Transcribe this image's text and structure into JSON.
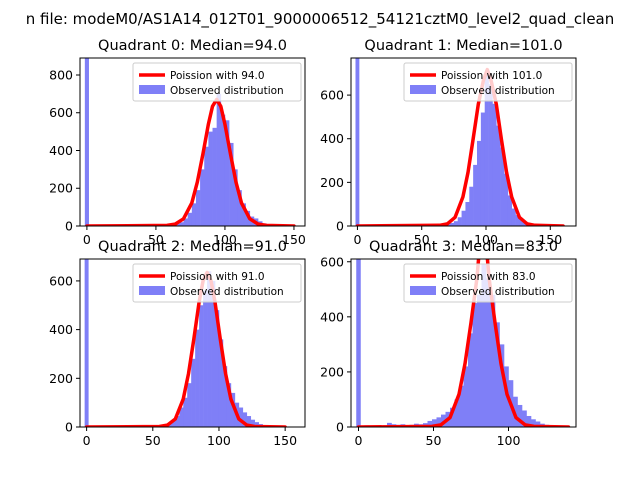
{
  "figure": {
    "suptitle": "n file: modeM0/AS1A14_012T01_9000006512_54121cztM0_level2_quad_clean"
  },
  "colors": {
    "poisson": "#ff0000",
    "observed": "#7f7ff7",
    "axes": "#000000",
    "background": "#ffffff"
  },
  "chart_data": [
    {
      "type": "bar",
      "title": "Quadrant 0: Median=94.0",
      "median": 94.0,
      "xlim": [
        -5,
        158
      ],
      "ylim": [
        0,
        890
      ],
      "xticks": [
        0,
        50,
        100,
        150
      ],
      "yticks": [
        0,
        200,
        400,
        600,
        800
      ],
      "spike": {
        "x": 0,
        "value": 890
      },
      "histogram": {
        "bin_width": 3,
        "x": [
          55,
          58,
          61,
          64,
          67,
          70,
          73,
          76,
          79,
          82,
          85,
          88,
          91,
          94,
          97,
          100,
          103,
          106,
          109,
          112,
          115,
          118,
          121,
          124,
          127,
          130,
          133
        ],
        "values": [
          2,
          4,
          6,
          12,
          20,
          40,
          70,
          120,
          190,
          300,
          420,
          500,
          520,
          700,
          590,
          560,
          440,
          300,
          190,
          120,
          80,
          50,
          40,
          25,
          14,
          8,
          4
        ]
      },
      "poisson_curve": {
        "x": [
          0,
          58,
          64,
          70,
          76,
          80,
          84,
          88,
          91,
          94,
          97,
          100,
          104,
          108,
          112,
          118,
          124,
          130,
          150
        ],
        "y": [
          0,
          3,
          10,
          38,
          122,
          232,
          381,
          540,
          634,
          670,
          634,
          540,
          381,
          232,
          122,
          38,
          10,
          3,
          0
        ]
      },
      "legend": {
        "poisson_label": "Poission with 94.0",
        "observed_label": "Observed distribution"
      }
    },
    {
      "type": "bar",
      "title": "Quadrant 1: Median=101.0",
      "median": 101.0,
      "xlim": [
        -5,
        170
      ],
      "ylim": [
        0,
        770
      ],
      "xticks": [
        0,
        50,
        100,
        150
      ],
      "yticks": [
        0,
        200,
        400,
        600
      ],
      "spike": {
        "x": 0,
        "value": 770
      },
      "histogram": {
        "bin_width": 3,
        "x": [
          60,
          63,
          66,
          69,
          72,
          75,
          78,
          81,
          84,
          87,
          90,
          93,
          96,
          99,
          102,
          105,
          108,
          111,
          114,
          117,
          120,
          123,
          126,
          129,
          132,
          135,
          138,
          141
        ],
        "values": [
          2,
          3,
          5,
          8,
          14,
          22,
          40,
          70,
          110,
          180,
          280,
          390,
          520,
          700,
          650,
          560,
          460,
          360,
          240,
          140,
          80,
          50,
          30,
          20,
          12,
          8,
          5,
          3
        ]
      },
      "poisson_curve": {
        "x": [
          0,
          64,
          70,
          76,
          82,
          86,
          90,
          94,
          98,
          101,
          104,
          108,
          112,
          116,
          120,
          126,
          132,
          138,
          160
        ],
        "y": [
          0,
          3,
          10,
          40,
          133,
          245,
          398,
          558,
          667,
          717,
          667,
          558,
          398,
          245,
          133,
          40,
          10,
          3,
          0
        ]
      },
      "legend": {
        "poisson_label": "Poission with 101.0",
        "observed_label": "Observed distribution"
      }
    },
    {
      "type": "bar",
      "title": "Quadrant 2: Median=91.0",
      "median": 91.0,
      "xlim": [
        -5,
        165
      ],
      "ylim": [
        0,
        690
      ],
      "xticks": [
        0,
        50,
        100,
        150
      ],
      "yticks": [
        0,
        200,
        400,
        600
      ],
      "spike": {
        "x": 0,
        "value": 690
      },
      "histogram": {
        "bin_width": 3,
        "x": [
          52,
          55,
          58,
          61,
          64,
          67,
          70,
          73,
          76,
          79,
          82,
          85,
          88,
          91,
          94,
          97,
          100,
          103,
          106,
          109,
          112,
          115,
          118,
          121,
          124,
          127,
          130,
          133
        ],
        "values": [
          2,
          4,
          8,
          14,
          25,
          45,
          80,
          120,
          180,
          280,
          400,
          500,
          560,
          640,
          600,
          480,
          360,
          250,
          180,
          140,
          100,
          80,
          60,
          45,
          30,
          20,
          12,
          6
        ]
      },
      "poisson_curve": {
        "x": [
          0,
          55,
          61,
          67,
          73,
          77,
          81,
          85,
          88,
          91,
          94,
          97,
          101,
          105,
          109,
          115,
          121,
          127,
          150
        ],
        "y": [
          0,
          2,
          8,
          33,
          114,
          219,
          360,
          513,
          601,
          635,
          601,
          513,
          360,
          219,
          114,
          33,
          8,
          2,
          0
        ]
      },
      "legend": {
        "poisson_label": "Poission with 91.0",
        "observed_label": "Observed distribution"
      }
    },
    {
      "type": "bar",
      "title": "Quadrant 3: Median=83.0",
      "median": 83.0,
      "xlim": [
        -5,
        145
      ],
      "ylim": [
        0,
        610
      ],
      "xticks": [
        0,
        50,
        100
      ],
      "yticks": [
        0,
        200,
        400,
        600
      ],
      "spike": {
        "x": 0,
        "value": 610
      },
      "histogram": {
        "bin_width": 3,
        "x": [
          4,
          7,
          10,
          13,
          16,
          19,
          22,
          25,
          28,
          31,
          34,
          37,
          40,
          43,
          46,
          49,
          52,
          55,
          58,
          61,
          64,
          67,
          70,
          73,
          76,
          79,
          82,
          85,
          88,
          91,
          94,
          97,
          100,
          103,
          106,
          109,
          112,
          115,
          118,
          121,
          124
        ],
        "values": [
          6,
          4,
          5,
          3,
          6,
          15,
          10,
          8,
          10,
          6,
          8,
          12,
          10,
          14,
          22,
          28,
          35,
          45,
          55,
          70,
          100,
          150,
          220,
          340,
          450,
          480,
          590,
          540,
          480,
          380,
          300,
          220,
          170,
          110,
          80,
          60,
          40,
          28,
          20,
          12,
          8
        ]
      },
      "poisson_curve": {
        "x": [
          0,
          49,
          55,
          61,
          67,
          71,
          75,
          79,
          80,
          83,
          86,
          87,
          91,
          95,
          99,
          105,
          111,
          117,
          140
        ],
        "y": [
          0,
          2,
          8,
          34,
          119,
          230,
          379,
          542,
          608,
          665,
          608,
          542,
          379,
          230,
          119,
          34,
          8,
          2,
          0
        ]
      },
      "legend": {
        "poisson_label": "Poission with 83.0",
        "observed_label": "Observed distribution"
      }
    }
  ]
}
